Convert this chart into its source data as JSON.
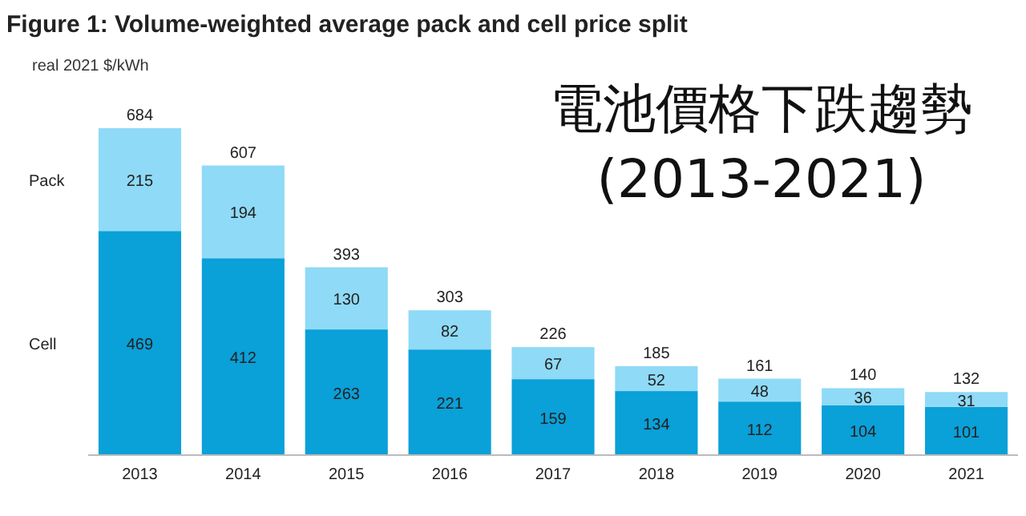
{
  "chart_data": {
    "type": "bar",
    "title": "Figure 1: Volume-weighted average pack and cell price split",
    "subtitle": "電池價格下跌趨勢 (2013-2021)",
    "ylabel": "real 2021 $/kWh",
    "categories": [
      "2013",
      "2014",
      "2015",
      "2016",
      "2017",
      "2018",
      "2019",
      "2020",
      "2021"
    ],
    "stacked": true,
    "data_labels": true,
    "series": [
      {
        "name": "Cell",
        "color": "#0aa0d8",
        "values": [
          469,
          412,
          263,
          221,
          159,
          134,
          112,
          104,
          101
        ]
      },
      {
        "name": "Pack",
        "color": "#8fdaf6",
        "values": [
          215,
          194,
          130,
          82,
          67,
          52,
          48,
          36,
          31
        ]
      }
    ],
    "totals": [
      "684",
      "607",
      "393",
      "303",
      "226",
      "185",
      "161",
      "140",
      "132"
    ]
  }
}
